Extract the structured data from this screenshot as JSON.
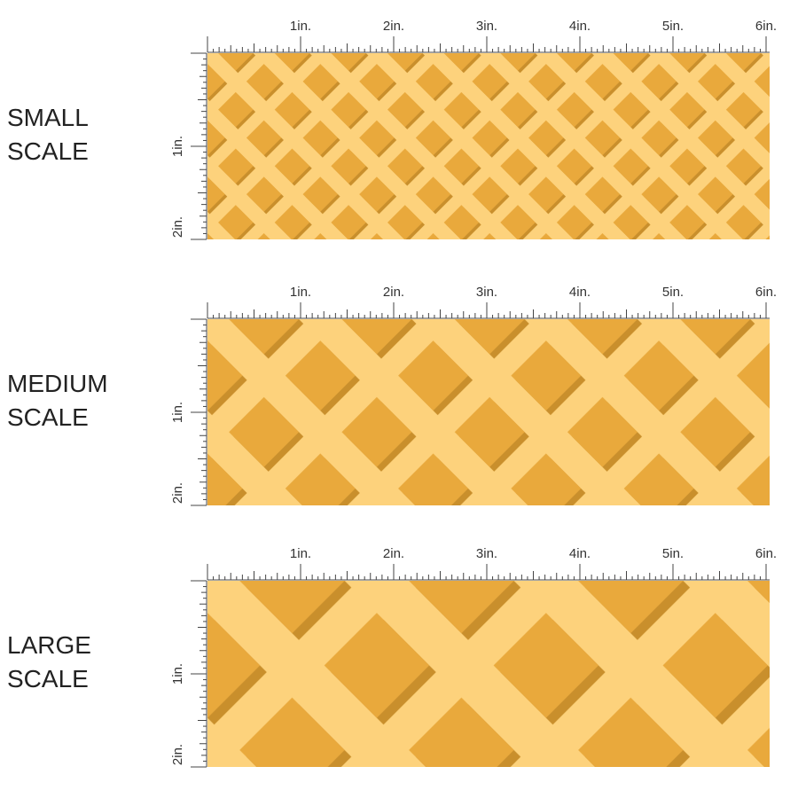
{
  "panels": [
    {
      "lines": [
        "SMALL",
        "SCALE"
      ],
      "x_labels": [
        "1in.",
        "2in.",
        "3in.",
        "4in.",
        "5in.",
        "6in."
      ],
      "y_labels": [
        "1in.",
        "2in."
      ]
    },
    {
      "lines": [
        "MEDIUM",
        "SCALE"
      ],
      "x_labels": [
        "1in.",
        "2in.",
        "3in.",
        "4in.",
        "5in.",
        "6in."
      ],
      "y_labels": [
        "1in.",
        "2in."
      ]
    },
    {
      "lines": [
        "LARGE",
        "SCALE"
      ],
      "x_labels": [
        "1in.",
        "2in.",
        "3in.",
        "4in.",
        "5in.",
        "6in."
      ],
      "y_labels": [
        "1in.",
        "2in."
      ]
    }
  ]
}
